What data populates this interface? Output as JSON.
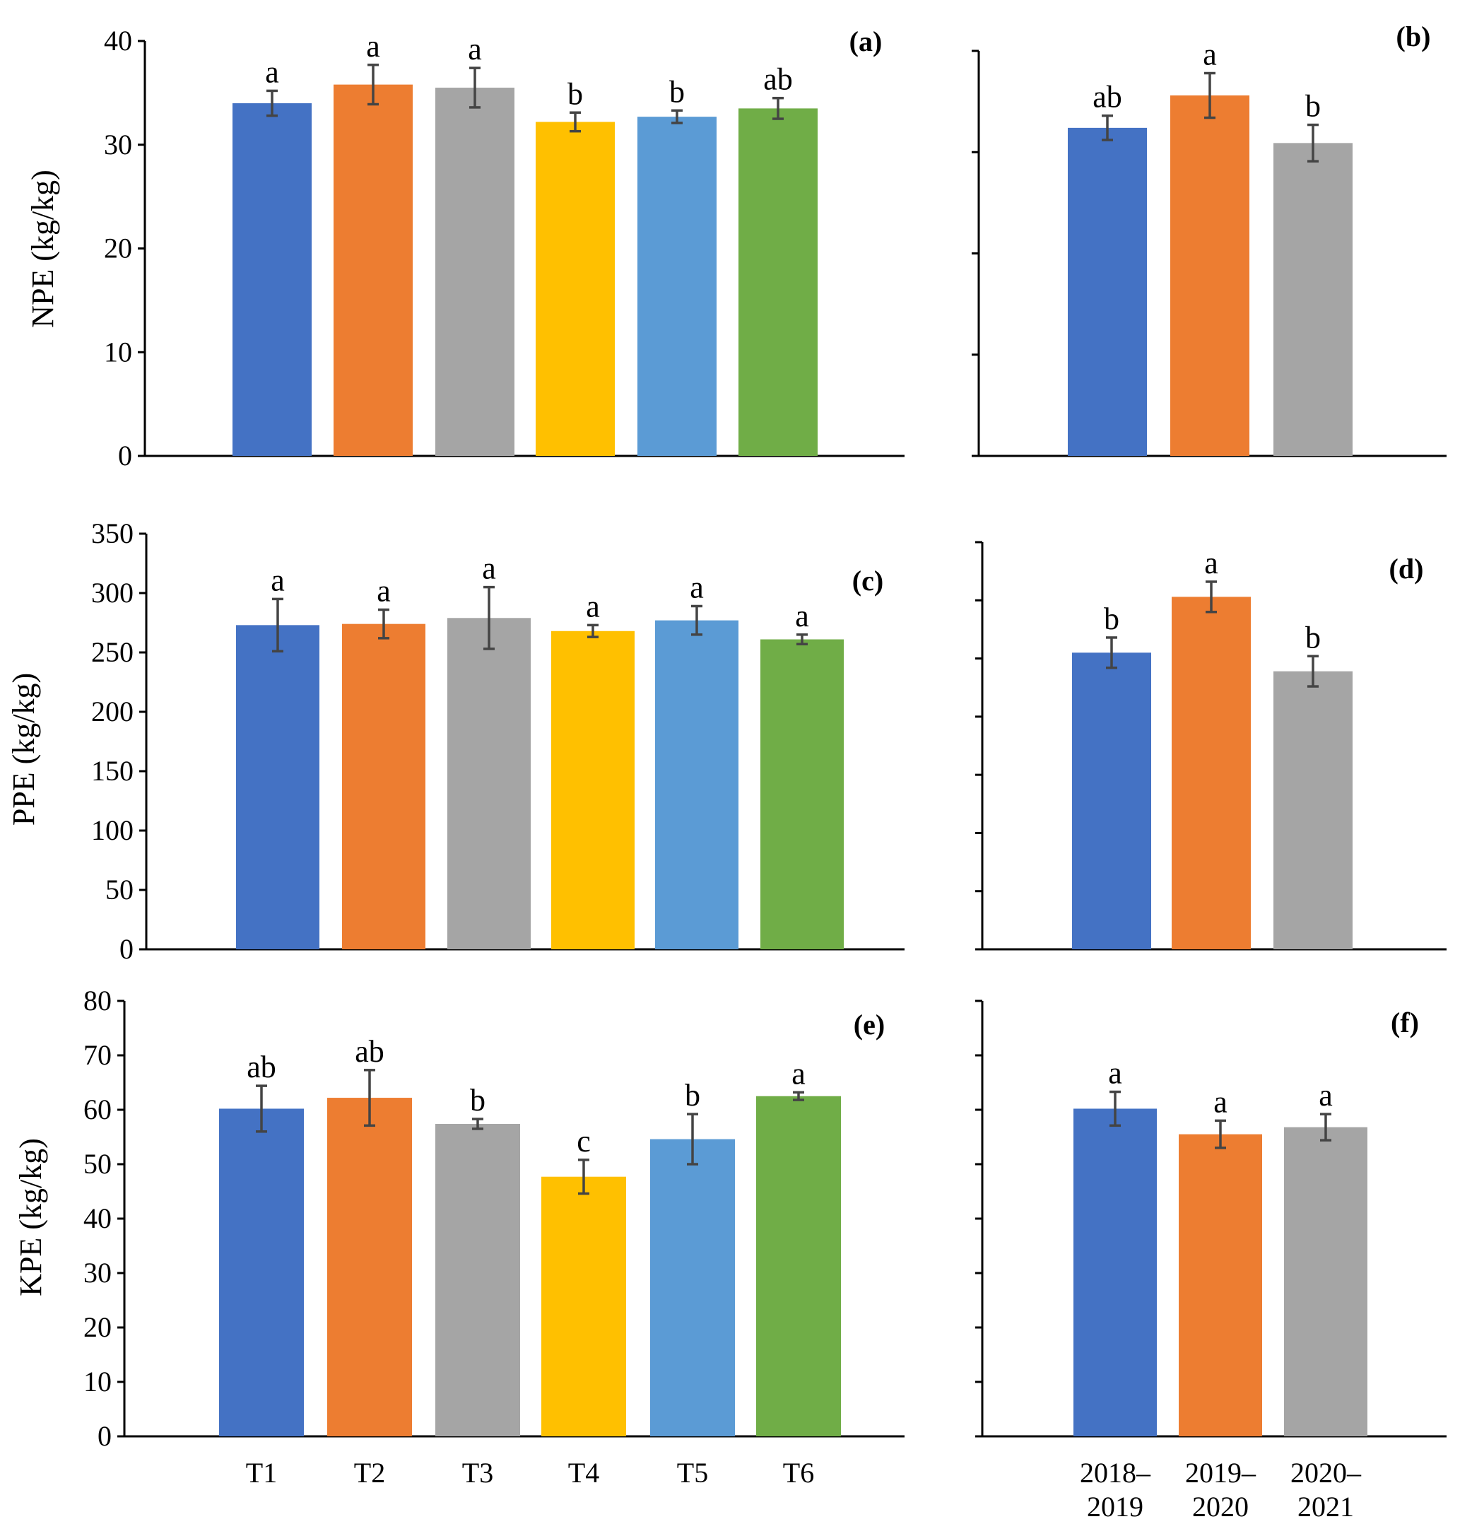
{
  "colors": {
    "T1": "#4472C4",
    "T2": "#ED7D31",
    "T3": "#A5A5A5",
    "T4": "#FFC000",
    "T5": "#5B9BD5",
    "T6": "#70AD47",
    "error_bar": "#444444"
  },
  "chart_data": [
    {
      "id": "a",
      "type": "bar",
      "panel_label": "(a)",
      "ylabel": "NPE (kg/kg)",
      "ylim": [
        0,
        40
      ],
      "yticks": [
        0,
        10,
        20,
        30,
        40
      ],
      "categories": [
        "T1",
        "T2",
        "T3",
        "T4",
        "T5",
        "T6"
      ],
      "values": [
        34.0,
        35.8,
        35.5,
        32.2,
        32.7,
        33.5
      ],
      "errors": [
        1.2,
        1.9,
        1.9,
        0.9,
        0.6,
        1.0
      ],
      "letters": [
        "a",
        "a",
        "a",
        "b",
        "b",
        "ab"
      ],
      "color_keys": [
        "T1",
        "T2",
        "T3",
        "T4",
        "T5",
        "T6"
      ]
    },
    {
      "id": "b",
      "type": "bar",
      "panel_label": "(b)",
      "ylabel": "",
      "ylim": [
        0,
        40
      ],
      "yticks": [
        0,
        10,
        20,
        30,
        40
      ],
      "categories": [
        "2018–2019",
        "2019–2020",
        "2020–2021"
      ],
      "values": [
        32.4,
        35.6,
        30.9
      ],
      "errors": [
        1.2,
        2.2,
        1.8
      ],
      "letters": [
        "ab",
        "a",
        "b"
      ],
      "color_keys": [
        "T1",
        "T2",
        "T3"
      ]
    },
    {
      "id": "c",
      "type": "bar",
      "panel_label": "(c)",
      "ylabel": "PPE (kg/kg)",
      "ylim": [
        0,
        350
      ],
      "yticks": [
        0,
        50,
        100,
        150,
        200,
        250,
        300,
        350
      ],
      "categories": [
        "T1",
        "T2",
        "T3",
        "T4",
        "T5",
        "T6"
      ],
      "values": [
        273,
        274,
        279,
        268,
        277,
        261
      ],
      "errors": [
        22,
        12,
        26,
        5,
        12,
        4
      ],
      "letters": [
        "a",
        "a",
        "a",
        "a",
        "a",
        "a"
      ],
      "color_keys": [
        "T1",
        "T2",
        "T3",
        "T4",
        "T5",
        "T6"
      ]
    },
    {
      "id": "d",
      "type": "bar",
      "panel_label": "(d)",
      "ylabel": "",
      "ylim": [
        0,
        350
      ],
      "yticks": [
        0,
        50,
        100,
        150,
        200,
        250,
        300,
        350
      ],
      "categories": [
        "2018–2019",
        "2019–2020",
        "2020–2021"
      ],
      "values": [
        255,
        303,
        239
      ],
      "errors": [
        13,
        13,
        13
      ],
      "letters": [
        "b",
        "a",
        "b"
      ],
      "color_keys": [
        "T1",
        "T2",
        "T3"
      ]
    },
    {
      "id": "e",
      "type": "bar",
      "panel_label": "(e)",
      "ylabel": "KPE (kg/kg)",
      "ylim": [
        0,
        80
      ],
      "yticks": [
        0,
        10,
        20,
        30,
        40,
        50,
        60,
        70,
        80
      ],
      "categories": [
        "T1",
        "T2",
        "T3",
        "T4",
        "T5",
        "T6"
      ],
      "values": [
        60.2,
        62.2,
        57.4,
        47.7,
        54.6,
        62.5
      ],
      "errors": [
        4.2,
        5.1,
        0.9,
        3.1,
        4.6,
        0.7
      ],
      "letters": [
        "ab",
        "ab",
        "b",
        "c",
        "b",
        "a"
      ],
      "color_keys": [
        "T1",
        "T2",
        "T3",
        "T4",
        "T5",
        "T6"
      ]
    },
    {
      "id": "f",
      "type": "bar",
      "panel_label": "(f)",
      "ylabel": "",
      "ylim": [
        0,
        80
      ],
      "yticks": [
        0,
        10,
        20,
        30,
        40,
        50,
        60,
        70,
        80
      ],
      "categories": [
        "2018–2019",
        "2019–2020",
        "2020–2021"
      ],
      "values": [
        60.2,
        55.5,
        56.8
      ],
      "errors": [
        3.1,
        2.5,
        2.4
      ],
      "letters": [
        "a",
        "a",
        "a"
      ],
      "color_keys": [
        "T1",
        "T2",
        "T3"
      ]
    }
  ]
}
